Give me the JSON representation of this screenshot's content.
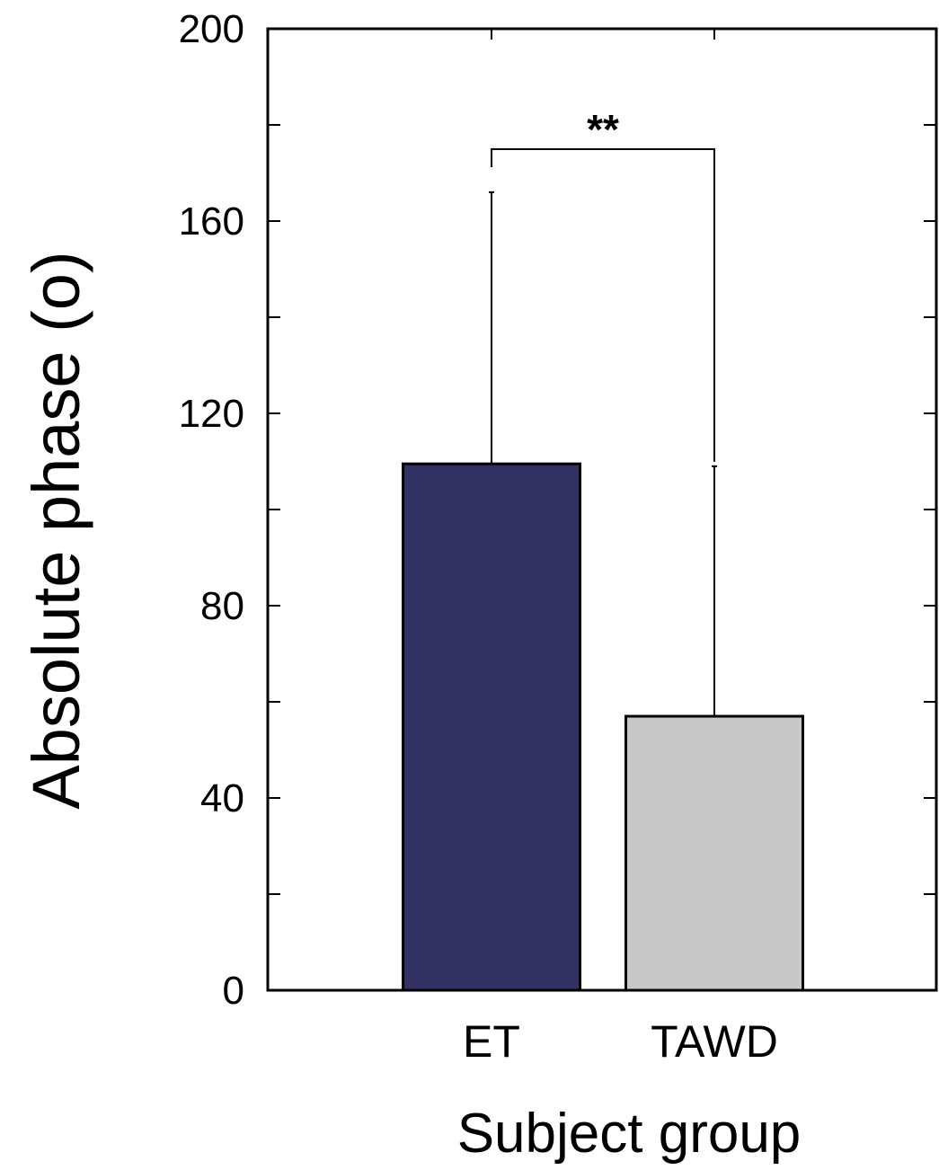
{
  "chart_data": {
    "type": "bar",
    "categories": [
      "ET",
      "TAWD"
    ],
    "values": [
      109.5,
      57
    ],
    "error_upper": [
      166,
      109
    ],
    "colors": [
      "#323262",
      "#c8c8c8"
    ],
    "xlabel": "Subject group",
    "ylabel": "Absolute phase (o)",
    "ylim": [
      0,
      200
    ],
    "yticks": [
      0,
      40,
      80,
      120,
      160,
      200
    ],
    "ytick_labels": [
      "0",
      "40",
      "80",
      "120",
      "160",
      "200"
    ],
    "significance": {
      "label": "**",
      "between": [
        "ET",
        "TAWD"
      ]
    },
    "grid": false
  }
}
